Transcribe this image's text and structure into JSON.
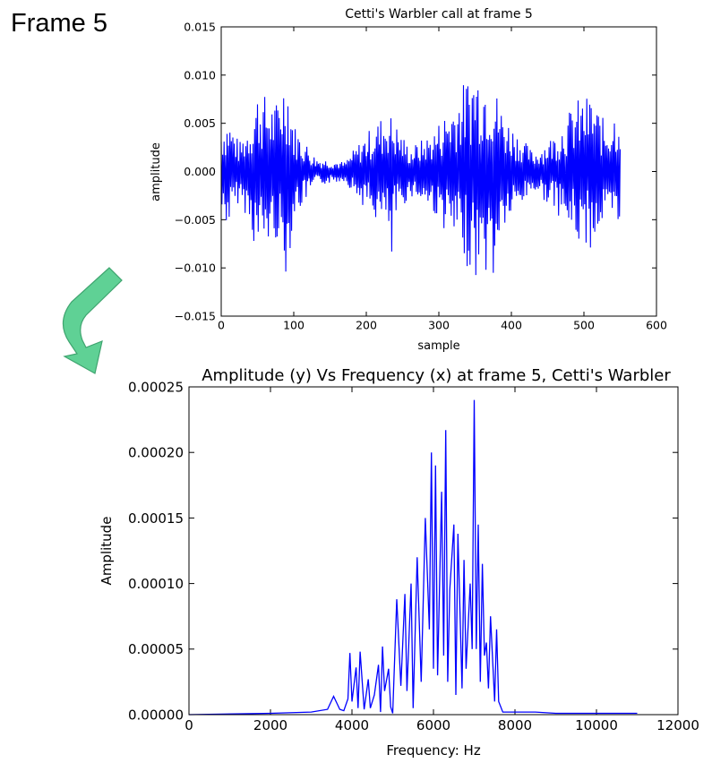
{
  "frame_label": "Frame 5",
  "colors": {
    "series": "#0000ff",
    "arrow_fill": "#5fd195",
    "arrow_stroke": "#3fa46f"
  },
  "icons": {
    "arrow": "curved-down-arrow-icon"
  },
  "chart_data": [
    {
      "type": "line",
      "title": "Cetti's Warbler call at frame 5",
      "xlabel": "sample",
      "ylabel": "amplitude",
      "xlim": [
        0,
        600
      ],
      "ylim": [
        -0.015,
        0.015
      ],
      "x_ticks": [
        "0",
        "100",
        "200",
        "300",
        "400",
        "500",
        "600"
      ],
      "y_ticks": [
        "−0.015",
        "−0.010",
        "−0.005",
        "0.000",
        "0.005",
        "0.010",
        "0.015"
      ],
      "grid": false,
      "series": [
        {
          "x_range": [
            0,
            550
          ],
          "envelope": [
            [
              0,
              0.005
            ],
            [
              10,
              0.0058
            ],
            [
              25,
              0.003
            ],
            [
              40,
              0.0055
            ],
            [
              50,
              0.0085
            ],
            [
              60,
              0.008
            ],
            [
              75,
              0.007
            ],
            [
              90,
              0.011
            ],
            [
              100,
              0.005
            ],
            [
              130,
              0.0015
            ],
            [
              170,
              0.001
            ],
            [
              200,
              0.004
            ],
            [
              230,
              0.0065
            ],
            [
              260,
              0.0025
            ],
            [
              290,
              0.004
            ],
            [
              320,
              0.0075
            ],
            [
              350,
              0.0112
            ],
            [
              370,
              0.0105
            ],
            [
              390,
              0.006
            ],
            [
              430,
              0.002
            ],
            [
              460,
              0.004
            ],
            [
              490,
              0.0075
            ],
            [
              510,
              0.008
            ],
            [
              530,
              0.005
            ],
            [
              550,
              0.0075
            ]
          ],
          "negative_peaks": [
            [
              45,
              -0.0072
            ],
            [
              60,
              -0.0088
            ],
            [
              90,
              -0.0085
            ],
            [
              235,
              -0.0083
            ],
            [
              352,
              -0.0105
            ],
            [
              358,
              -0.0095
            ],
            [
              365,
              -0.0102
            ],
            [
              375,
              -0.0105
            ],
            [
              510,
              -0.009
            ],
            [
              530,
              -0.0075
            ],
            [
              548,
              -0.0075
            ]
          ]
        }
      ]
    },
    {
      "type": "line",
      "title": "Amplitude (y) Vs Frequency (x) at frame 5, Cetti's Warbler",
      "xlabel": "Frequency: Hz",
      "ylabel": "Amplitude",
      "xlim": [
        0,
        12000
      ],
      "ylim": [
        0,
        0.00025
      ],
      "x_ticks": [
        "0",
        "2000",
        "4000",
        "6000",
        "8000",
        "10000",
        "12000"
      ],
      "y_ticks": [
        "0.00000",
        "0.00005",
        "0.00010",
        "0.00015",
        "0.00020",
        "0.00025"
      ],
      "grid": false,
      "series": [
        {
          "x": [
            0,
            2000,
            3000,
            3400,
            3550,
            3700,
            3800,
            3900,
            3950,
            4000,
            4100,
            4150,
            4200,
            4300,
            4400,
            4450,
            4550,
            4650,
            4700,
            4750,
            4800,
            4900,
            4950,
            5000,
            5100,
            5200,
            5300,
            5350,
            5450,
            5500,
            5600,
            5700,
            5800,
            5900,
            5950,
            6000,
            6050,
            6100,
            6200,
            6250,
            6300,
            6350,
            6400,
            6500,
            6550,
            6600,
            6700,
            6750,
            6800,
            6900,
            6950,
            7000,
            7050,
            7100,
            7150,
            7200,
            7250,
            7300,
            7350,
            7400,
            7500,
            7550,
            7600,
            7700,
            8000,
            8500,
            9000,
            10000,
            11000
          ],
          "y": [
            0,
            1e-06,
            2e-06,
            4e-06,
            1.4e-05,
            4e-06,
            3e-06,
            1.2e-05,
            4.7e-05,
            1e-05,
            3.6e-05,
            5e-06,
            4.8e-05,
            4e-06,
            2.7e-05,
            5e-06,
            1.5e-05,
            3.8e-05,
            2e-06,
            5.2e-05,
            1.8e-05,
            3.5e-05,
            6e-06,
            1e-06,
            8.8e-05,
            2.2e-05,
            9.2e-05,
            1.8e-05,
            0.0001,
            5e-06,
            0.00012,
            2.5e-05,
            0.00015,
            6.5e-05,
            0.0002,
            3.5e-05,
            0.00019,
            3e-05,
            0.00017,
            4.5e-05,
            0.000217,
            2.5e-05,
            9.5e-05,
            0.000145,
            1.5e-05,
            0.000138,
            2e-05,
            0.000118,
            3.5e-05,
            0.0001,
            5e-05,
            0.00024,
            5e-05,
            0.000145,
            2.5e-05,
            0.000115,
            4.5e-05,
            5.5e-05,
            2e-05,
            7.5e-05,
            1e-05,
            6.5e-05,
            1e-05,
            2e-06,
            2e-06,
            2e-06,
            1e-06,
            1e-06,
            1e-06
          ]
        }
      ]
    }
  ]
}
